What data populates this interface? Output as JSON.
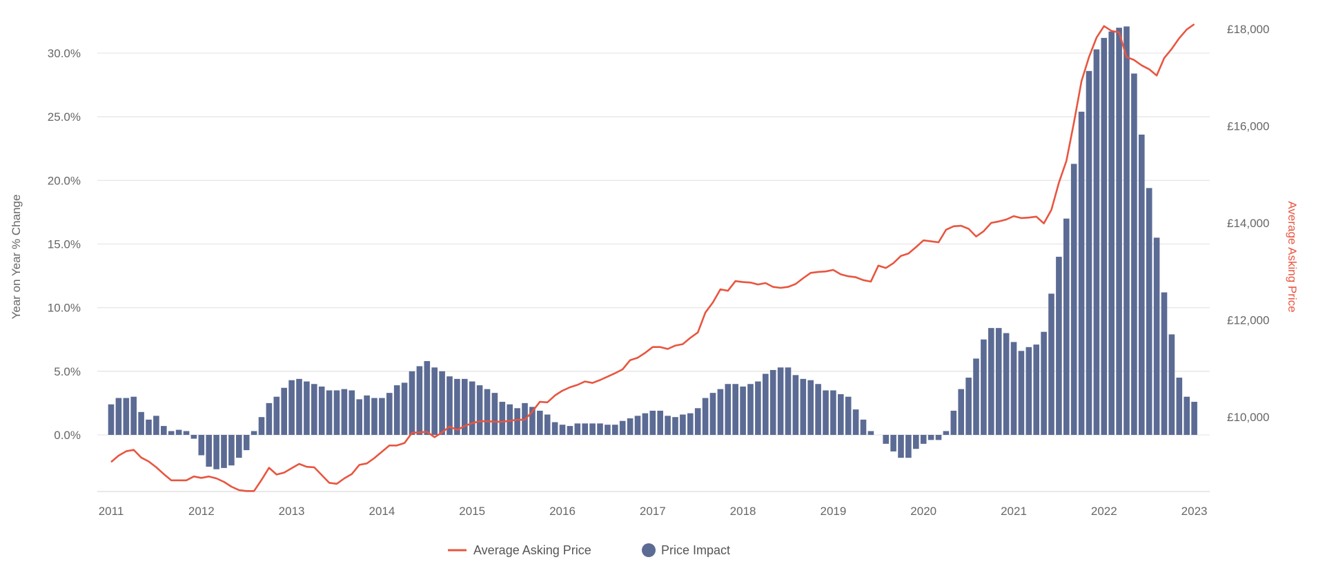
{
  "chart_data": {
    "type": "bar+line",
    "title": "",
    "x_start": "2011-01",
    "x_step": "month",
    "x_tick_labels": [
      "2011",
      "2012",
      "2013",
      "2014",
      "2015",
      "2016",
      "2017",
      "2018",
      "2019",
      "2020",
      "2021",
      "2022",
      "2023"
    ],
    "ylabel": "Year on Year % Change",
    "ylim": [
      -4.45,
      31.9
    ],
    "y_ticks": [
      0,
      5,
      10,
      15,
      20,
      25,
      30
    ],
    "y_tick_labels": [
      "0.0%",
      "5.0%",
      "10.0%",
      "15.0%",
      "20.0%",
      "25.0%",
      "30.0%"
    ],
    "y2label": "Average Asking Price",
    "y2lim": [
      8460,
      18000
    ],
    "y2_ticks": [
      10000,
      12000,
      14000,
      16000,
      18000
    ],
    "y2_tick_labels": [
      "£10,000",
      "£12,000",
      "£14,000",
      "£16,000",
      "£18,000"
    ],
    "grid": true,
    "legend_position": "bottom-center",
    "series": [
      {
        "name": "Average Asking Price",
        "type": "line",
        "axis": "right",
        "color": "#e8553f",
        "values": [
          9070,
          9200,
          9290,
          9320,
          9160,
          9080,
          8960,
          8820,
          8690,
          8690,
          8690,
          8770,
          8740,
          8770,
          8730,
          8660,
          8560,
          8490,
          8470,
          8470,
          8700,
          8950,
          8810,
          8850,
          8940,
          9030,
          8970,
          8960,
          8800,
          8640,
          8620,
          8730,
          8820,
          9010,
          9040,
          9150,
          9280,
          9410,
          9410,
          9460,
          9670,
          9680,
          9690,
          9580,
          9680,
          9800,
          9730,
          9810,
          9870,
          9910,
          9910,
          9900,
          9900,
          9920,
          9940,
          9940,
          10110,
          10310,
          10300,
          10440,
          10540,
          10610,
          10660,
          10730,
          10700,
          10760,
          10830,
          10900,
          10980,
          11170,
          11220,
          11320,
          11440,
          11440,
          11400,
          11470,
          11500,
          11630,
          11740,
          12150,
          12360,
          12630,
          12600,
          12800,
          12780,
          12770,
          12730,
          12760,
          12680,
          12660,
          12680,
          12740,
          12860,
          12970,
          12990,
          13000,
          13030,
          12940,
          12900,
          12880,
          12820,
          12790,
          13120,
          13070,
          13170,
          13320,
          13370,
          13500,
          13640,
          13620,
          13600,
          13860,
          13930,
          13940,
          13880,
          13720,
          13830,
          14000,
          14030,
          14070,
          14140,
          14100,
          14110,
          14130,
          13990,
          14270,
          14830,
          15280,
          16070,
          16920,
          17420,
          17820,
          18060,
          17960,
          17930,
          17420,
          17360,
          17250,
          17170,
          17040,
          17400,
          17590,
          17810,
          17990,
          18100
        ]
      },
      {
        "name": "Price Impact",
        "type": "bar",
        "axis": "left",
        "color": "#5b6b94",
        "values": [
          2.4,
          2.9,
          2.9,
          3.0,
          1.8,
          1.2,
          1.5,
          0.7,
          0.3,
          0.4,
          0.3,
          -0.3,
          -1.6,
          -2.5,
          -2.7,
          -2.6,
          -2.4,
          -1.8,
          -1.2,
          0.3,
          1.4,
          2.5,
          3.0,
          3.7,
          4.3,
          4.4,
          4.2,
          4.0,
          3.8,
          3.5,
          3.5,
          3.6,
          3.5,
          2.8,
          3.1,
          2.9,
          2.9,
          3.3,
          3.9,
          4.1,
          5.0,
          5.4,
          5.8,
          5.3,
          5.0,
          4.6,
          4.4,
          4.4,
          4.2,
          3.9,
          3.6,
          3.3,
          2.6,
          2.4,
          2.1,
          2.5,
          2.2,
          1.9,
          1.6,
          1.0,
          0.8,
          0.7,
          0.9,
          0.9,
          0.9,
          0.9,
          0.8,
          0.8,
          1.1,
          1.3,
          1.5,
          1.7,
          1.9,
          1.9,
          1.5,
          1.4,
          1.6,
          1.7,
          2.1,
          2.9,
          3.3,
          3.6,
          4.0,
          4.0,
          3.8,
          4.0,
          4.2,
          4.8,
          5.1,
          5.3,
          5.3,
          4.7,
          4.4,
          4.3,
          4.0,
          3.5,
          3.5,
          3.2,
          3.0,
          2.0,
          1.2,
          0.3,
          0.0,
          -0.7,
          -1.3,
          -1.8,
          -1.8,
          -1.1,
          -0.7,
          -0.4,
          -0.4,
          0.3,
          1.9,
          3.6,
          4.5,
          6.0,
          7.5,
          8.4,
          8.4,
          8.0,
          7.3,
          6.6,
          6.9,
          7.1,
          8.1,
          11.1,
          14.0,
          17.0,
          21.3,
          25.4,
          28.6,
          30.3,
          31.2,
          31.7,
          32.0,
          32.1,
          28.4,
          23.6,
          19.4,
          15.5,
          11.2,
          7.9,
          4.5,
          3.0,
          2.6
        ]
      }
    ]
  },
  "legend": {
    "line_label": "Average Asking Price",
    "bar_label": "Price Impact"
  }
}
